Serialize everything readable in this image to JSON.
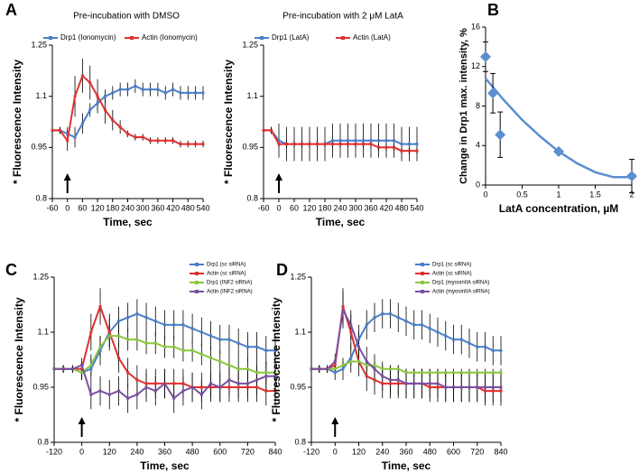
{
  "chart_data": [
    {
      "type": "line",
      "label": "A",
      "title": "Pre-incubation with DMSO",
      "xlabel": "Time, sec",
      "ylabel": "* Fluorescence Intensity",
      "legend": "top",
      "x": [
        -60,
        -30,
        0,
        30,
        60,
        90,
        120,
        150,
        180,
        210,
        240,
        270,
        300,
        330,
        360,
        390,
        420,
        450,
        480,
        510,
        540
      ],
      "xlim": [
        -60,
        540
      ],
      "xticks": [
        -60,
        0,
        60,
        120,
        180,
        240,
        300,
        360,
        420,
        480,
        540
      ],
      "ylim": [
        0.8,
        1.25
      ],
      "yticks": [
        0.8,
        0.95,
        1.1,
        1.25
      ],
      "series": [
        {
          "name": "Drp1 (Ionomycin)",
          "color": "#4a7fc8",
          "values": [
            1.0,
            1.0,
            0.99,
            0.98,
            1.02,
            1.06,
            1.08,
            1.1,
            1.11,
            1.12,
            1.12,
            1.13,
            1.12,
            1.12,
            1.12,
            1.11,
            1.12,
            1.11,
            1.11,
            1.11,
            1.11
          ],
          "errors": [
            0.01,
            0.01,
            0.02,
            0.03,
            0.03,
            0.02,
            0.02,
            0.02,
            0.02,
            0.02,
            0.02,
            0.02,
            0.02,
            0.02,
            0.02,
            0.02,
            0.02,
            0.02,
            0.02,
            0.02,
            0.02
          ]
        },
        {
          "name": "Actin (Ionomycin)",
          "color": "#e03030",
          "values": [
            1.0,
            1.0,
            0.97,
            1.1,
            1.16,
            1.14,
            1.1,
            1.06,
            1.03,
            1.01,
            0.99,
            0.98,
            0.98,
            0.97,
            0.97,
            0.97,
            0.97,
            0.96,
            0.96,
            0.96,
            0.96
          ],
          "errors": [
            0.01,
            0.01,
            0.03,
            0.06,
            0.05,
            0.05,
            0.05,
            0.04,
            0.03,
            0.02,
            0.01,
            0.01,
            0.01,
            0.01,
            0.01,
            0.01,
            0.01,
            0.01,
            0.01,
            0.01,
            0.01
          ]
        }
      ]
    },
    {
      "type": "line",
      "title": "Pre-incubation with 2 μM LatA",
      "xlabel": "Time, sec",
      "ylabel": "* Fluorescence Intensity",
      "legend": "top",
      "x": [
        -60,
        -30,
        0,
        30,
        60,
        90,
        120,
        150,
        180,
        210,
        240,
        270,
        300,
        330,
        360,
        390,
        420,
        450,
        480,
        510,
        540
      ],
      "xlim": [
        -60,
        540
      ],
      "xticks": [
        -60,
        0,
        60,
        120,
        180,
        240,
        300,
        360,
        420,
        480,
        540
      ],
      "ylim": [
        0.8,
        1.25
      ],
      "yticks": [
        0.8,
        0.95,
        1.1,
        1.25
      ],
      "series": [
        {
          "name": "Drp1 (LatA)",
          "color": "#4a7fc8",
          "values": [
            1.0,
            1.0,
            0.97,
            0.96,
            0.96,
            0.96,
            0.96,
            0.96,
            0.96,
            0.97,
            0.97,
            0.97,
            0.97,
            0.97,
            0.97,
            0.97,
            0.97,
            0.97,
            0.96,
            0.96,
            0.96
          ],
          "errors": [
            0.01,
            0.01,
            0.05,
            0.05,
            0.05,
            0.05,
            0.05,
            0.05,
            0.05,
            0.05,
            0.05,
            0.05,
            0.05,
            0.05,
            0.05,
            0.05,
            0.05,
            0.05,
            0.05,
            0.05,
            0.05
          ]
        },
        {
          "name": "Actin (LatA)",
          "color": "#e03030",
          "values": [
            1.0,
            1.0,
            0.96,
            0.96,
            0.96,
            0.96,
            0.96,
            0.96,
            0.96,
            0.96,
            0.96,
            0.96,
            0.96,
            0.96,
            0.96,
            0.95,
            0.95,
            0.95,
            0.94,
            0.94,
            0.94
          ],
          "errors": [
            0.01,
            0.01,
            0.01,
            0.01,
            0.01,
            0.01,
            0.01,
            0.01,
            0.01,
            0.01,
            0.01,
            0.01,
            0.01,
            0.01,
            0.01,
            0.01,
            0.01,
            0.01,
            0.01,
            0.01,
            0.01
          ]
        }
      ]
    },
    {
      "type": "scatter",
      "label": "B",
      "xlabel": "LatA concentration, µM",
      "ylabel": "Change in Drp1 max. intensity, %",
      "x": [
        0,
        0.1,
        0.2,
        1,
        2
      ],
      "values": [
        13,
        9.3,
        5.1,
        3.4,
        0.9
      ],
      "errors": [
        1.5,
        2,
        2.3,
        0,
        1.7
      ],
      "color": "#5b8fd0",
      "trendline": {
        "x": [
          0,
          0.25,
          0.5,
          0.75,
          1,
          1.25,
          1.5,
          1.75,
          2
        ],
        "values": [
          10.8,
          8.6,
          6.6,
          4.9,
          3.4,
          2.2,
          1.3,
          0.8,
          0.8
        ]
      },
      "xlim": [
        0,
        2
      ],
      "xticks": [
        0,
        0.5,
        1,
        1.5,
        2
      ],
      "ylim": [
        0,
        16
      ],
      "yticks": [
        0,
        4,
        8,
        12,
        16
      ]
    },
    {
      "type": "line",
      "label": "C",
      "xlabel": "Time, sec",
      "ylabel": "* Fluorescence Intensity",
      "legend": "upper-right",
      "x": [
        -120,
        -80,
        -40,
        0,
        40,
        80,
        120,
        160,
        200,
        240,
        280,
        320,
        360,
        400,
        440,
        480,
        520,
        560,
        600,
        640,
        680,
        720,
        760,
        800,
        840
      ],
      "xlim": [
        -120,
        840
      ],
      "xticks": [
        -120,
        0,
        120,
        240,
        360,
        480,
        600,
        720,
        840
      ],
      "ylim": [
        0.8,
        1.25
      ],
      "yticks": [
        0.8,
        0.95,
        1.1,
        1.25
      ],
      "series": [
        {
          "name": "Drp1 (sc siRNA)",
          "color": "#4a7fc8",
          "values": [
            1.0,
            1.0,
            1.0,
            0.99,
            1.0,
            1.05,
            1.1,
            1.13,
            1.14,
            1.15,
            1.14,
            1.13,
            1.12,
            1.12,
            1.12,
            1.11,
            1.1,
            1.09,
            1.08,
            1.08,
            1.07,
            1.06,
            1.06,
            1.05,
            1.05
          ],
          "errors": [
            0.01,
            0.01,
            0.01,
            0.02,
            0.03,
            0.04,
            0.04,
            0.04,
            0.04,
            0.04,
            0.04,
            0.04,
            0.04,
            0.04,
            0.04,
            0.04,
            0.04,
            0.04,
            0.04,
            0.04,
            0.04,
            0.04,
            0.04,
            0.04,
            0.04
          ]
        },
        {
          "name": "Actin (sc siRNA)",
          "color": "#e03030",
          "values": [
            1.0,
            1.0,
            1.0,
            1.0,
            1.1,
            1.17,
            1.1,
            1.03,
            0.99,
            0.97,
            0.96,
            0.96,
            0.96,
            0.96,
            0.96,
            0.95,
            0.95,
            0.95,
            0.95,
            0.95,
            0.95,
            0.95,
            0.95,
            0.94,
            0.94
          ],
          "errors": [
            0.01,
            0.01,
            0.01,
            0.02,
            0.05,
            0.05,
            0.05,
            0.04,
            0.04,
            0.04,
            0.04,
            0.04,
            0.04,
            0.04,
            0.04,
            0.04,
            0.04,
            0.04,
            0.04,
            0.04,
            0.04,
            0.04,
            0.04,
            0.04,
            0.04
          ]
        },
        {
          "name": "Drp1 (INF2 siRNA)",
          "color": "#8cc63f",
          "values": [
            1.0,
            1.0,
            1.0,
            0.99,
            1.01,
            1.06,
            1.09,
            1.09,
            1.08,
            1.08,
            1.07,
            1.07,
            1.06,
            1.06,
            1.05,
            1.05,
            1.04,
            1.03,
            1.02,
            1.01,
            1.0,
            1.0,
            0.99,
            0.99,
            0.99
          ],
          "errors": [
            0.01,
            0.01,
            0.01,
            0.02,
            0.03,
            0.03,
            0.03,
            0.03,
            0.03,
            0.03,
            0.03,
            0.03,
            0.03,
            0.03,
            0.03,
            0.03,
            0.03,
            0.03,
            0.03,
            0.03,
            0.03,
            0.03,
            0.03,
            0.03,
            0.03
          ]
        },
        {
          "name": "Actin (INF2 siRNA)",
          "color": "#7a4fa0",
          "values": [
            1.0,
            1.0,
            1.0,
            1.01,
            0.93,
            0.94,
            0.93,
            0.94,
            0.92,
            0.93,
            0.95,
            0.94,
            0.96,
            0.92,
            0.94,
            0.95,
            0.93,
            0.96,
            0.95,
            0.97,
            0.96,
            0.96,
            0.97,
            0.98,
            0.98
          ],
          "errors": [
            0.01,
            0.01,
            0.01,
            0.02,
            0.04,
            0.04,
            0.04,
            0.04,
            0.04,
            0.04,
            0.04,
            0.04,
            0.04,
            0.04,
            0.04,
            0.04,
            0.04,
            0.04,
            0.04,
            0.04,
            0.04,
            0.04,
            0.04,
            0.04,
            0.04
          ]
        }
      ]
    },
    {
      "type": "line",
      "label": "D",
      "xlabel": "Time, sec",
      "ylabel": "* Fluorescence Intensity",
      "legend": "upper-right",
      "x": [
        -120,
        -80,
        -40,
        0,
        40,
        80,
        120,
        160,
        200,
        240,
        280,
        320,
        360,
        400,
        440,
        480,
        520,
        560,
        600,
        640,
        680,
        720,
        760,
        800,
        840
      ],
      "xlim": [
        -120,
        840
      ],
      "xticks": [
        -120,
        0,
        120,
        240,
        360,
        480,
        600,
        720,
        840
      ],
      "ylim": [
        0.8,
        1.25
      ],
      "yticks": [
        0.8,
        0.95,
        1.1,
        1.25
      ],
      "series": [
        {
          "name": "Drp1 (sc siRNA)",
          "color": "#4a7fc8",
          "values": [
            1.0,
            1.0,
            1.0,
            0.99,
            1.0,
            1.03,
            1.08,
            1.12,
            1.14,
            1.15,
            1.15,
            1.14,
            1.13,
            1.12,
            1.12,
            1.11,
            1.1,
            1.09,
            1.08,
            1.08,
            1.07,
            1.06,
            1.06,
            1.05,
            1.05
          ],
          "errors": [
            0.01,
            0.01,
            0.01,
            0.02,
            0.03,
            0.04,
            0.04,
            0.04,
            0.04,
            0.04,
            0.04,
            0.04,
            0.04,
            0.04,
            0.04,
            0.04,
            0.04,
            0.04,
            0.04,
            0.04,
            0.04,
            0.04,
            0.04,
            0.04,
            0.04
          ]
        },
        {
          "name": "Actin (sc siRNA)",
          "color": "#e03030",
          "values": [
            1.0,
            1.0,
            1.0,
            1.01,
            1.17,
            1.1,
            1.02,
            0.98,
            0.97,
            0.96,
            0.96,
            0.96,
            0.96,
            0.96,
            0.96,
            0.95,
            0.95,
            0.95,
            0.95,
            0.95,
            0.95,
            0.95,
            0.94,
            0.94,
            0.94
          ],
          "errors": [
            0.01,
            0.01,
            0.01,
            0.02,
            0.05,
            0.05,
            0.04,
            0.04,
            0.04,
            0.04,
            0.04,
            0.04,
            0.04,
            0.04,
            0.04,
            0.04,
            0.04,
            0.04,
            0.04,
            0.04,
            0.04,
            0.04,
            0.04,
            0.04,
            0.04
          ]
        },
        {
          "name": "Drp1 (myosinIIA siRNA)",
          "color": "#8cc63f",
          "values": [
            1.0,
            1.0,
            1.0,
            1.0,
            1.01,
            1.02,
            1.02,
            1.01,
            1.01,
            1.0,
            1.0,
            1.0,
            0.99,
            0.99,
            0.99,
            0.99,
            0.99,
            0.99,
            0.99,
            0.99,
            0.99,
            0.99,
            0.99,
            0.99,
            0.99
          ],
          "errors": [
            0.01,
            0.01,
            0.01,
            0.01,
            0.01,
            0.01,
            0.01,
            0.01,
            0.01,
            0.01,
            0.01,
            0.01,
            0.01,
            0.01,
            0.01,
            0.01,
            0.01,
            0.01,
            0.01,
            0.01,
            0.01,
            0.01,
            0.01,
            0.01,
            0.01
          ]
        },
        {
          "name": "Actin (myosinIIA siRNA)",
          "color": "#7a4fa0",
          "values": [
            1.0,
            1.0,
            1.0,
            1.02,
            1.16,
            1.12,
            1.06,
            1.02,
            1.0,
            0.98,
            0.97,
            0.97,
            0.96,
            0.96,
            0.96,
            0.96,
            0.96,
            0.95,
            0.95,
            0.95,
            0.95,
            0.95,
            0.95,
            0.95,
            0.95
          ],
          "errors": [
            0.01,
            0.01,
            0.01,
            0.02,
            0.05,
            0.04,
            0.04,
            0.04,
            0.04,
            0.04,
            0.04,
            0.04,
            0.04,
            0.04,
            0.04,
            0.04,
            0.04,
            0.04,
            0.04,
            0.04,
            0.04,
            0.04,
            0.04,
            0.04,
            0.04
          ]
        }
      ]
    }
  ]
}
